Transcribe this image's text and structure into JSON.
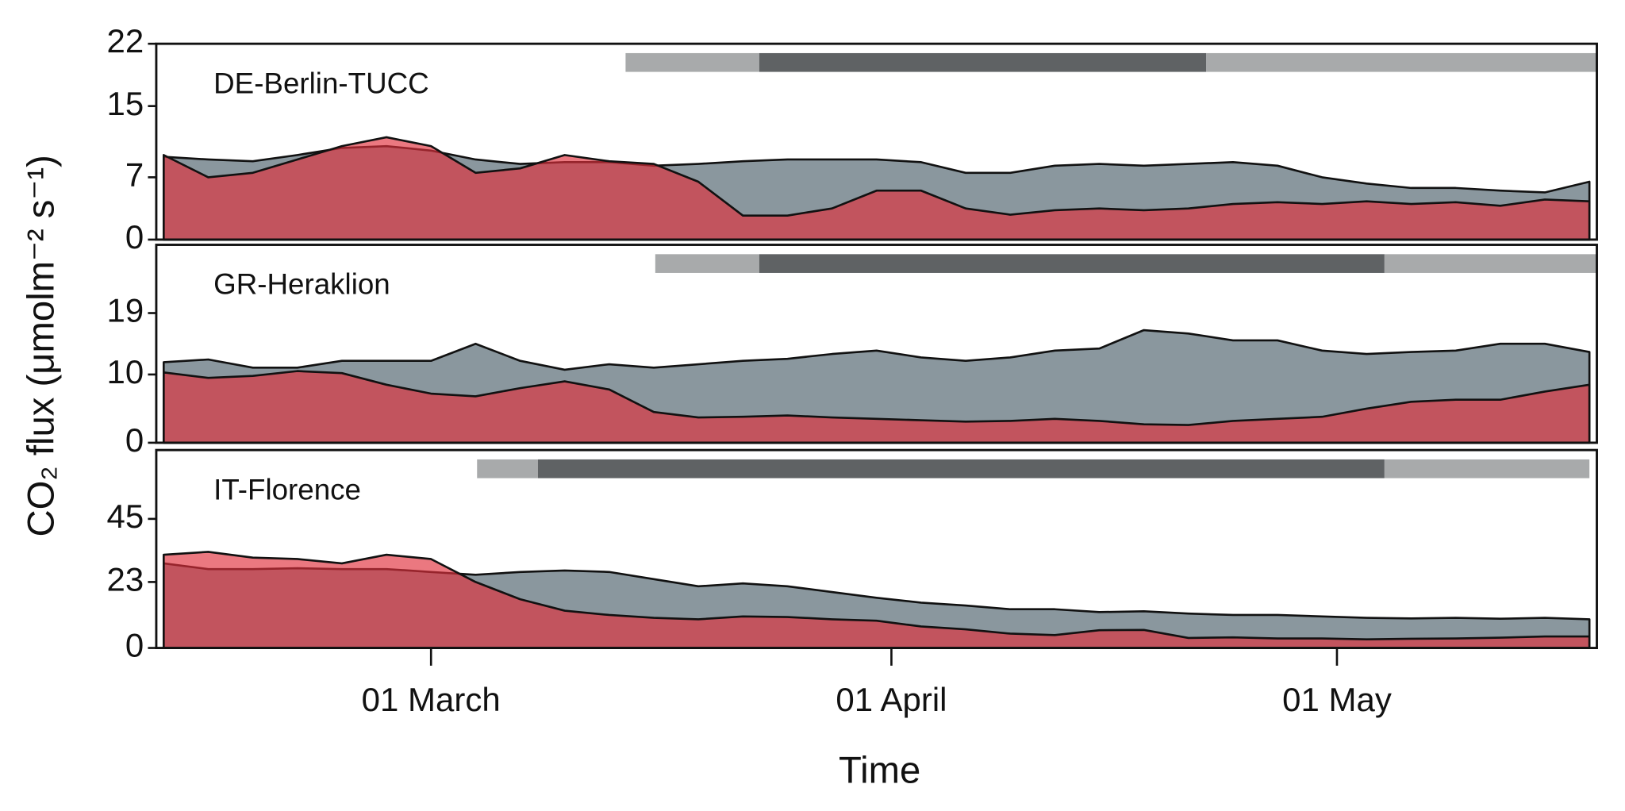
{
  "chart_data": [
    {
      "type": "area",
      "label": "DE-Berlin-TUCC",
      "x": [
        43,
        46,
        49,
        52,
        55,
        58,
        61,
        64,
        67,
        70,
        73,
        76,
        79,
        82,
        85,
        88,
        91,
        94,
        97,
        100,
        103,
        106,
        109,
        112,
        115,
        118,
        121,
        124,
        127,
        130,
        133,
        136,
        139
      ],
      "series": [
        {
          "color": "#8a979e",
          "values": [
            9.3,
            9,
            8.8,
            9.5,
            10.3,
            10.5,
            10,
            9,
            8.5,
            8.7,
            8.7,
            8.3,
            8.5,
            8.8,
            9,
            9,
            9,
            8.7,
            7.5,
            7.5,
            8.3,
            8.5,
            8.3,
            8.5,
            8.7,
            8.3,
            7,
            6.3,
            5.8,
            5.8,
            5.5,
            5.3,
            6.5
          ]
        },
        {
          "color": "#e0303c",
          "values": [
            9.5,
            7,
            7.5,
            9,
            10.5,
            11.5,
            10.5,
            7.5,
            8,
            9.5,
            8.8,
            8.5,
            6.5,
            2.7,
            2.7,
            3.5,
            5.5,
            5.5,
            3.5,
            2.8,
            3.3,
            3.5,
            3.3,
            3.5,
            4,
            4.2,
            4,
            4.3,
            4,
            4.2,
            3.8,
            4.5,
            4.3
          ]
        }
      ],
      "periods": [
        {
          "start": 74.1,
          "end": 83.1,
          "color": "#a8aaab"
        },
        {
          "start": 83.1,
          "end": 113.2,
          "color": "#5f6264"
        },
        {
          "start": 113.2,
          "end": 139.5,
          "color": "#a8aaab"
        }
      ],
      "xlim": [
        42.5,
        139.5
      ],
      "ylim": [
        0,
        22
      ],
      "yticks": [
        0,
        7,
        15,
        22
      ]
    },
    {
      "type": "area",
      "label": "GR-Heraklion",
      "ylabel": "CO₂ flux (μmolm⁻² s⁻¹)",
      "x": [
        43,
        46,
        49,
        52,
        55,
        58,
        61,
        64,
        67,
        70,
        73,
        76,
        79,
        82,
        85,
        88,
        91,
        94,
        97,
        100,
        103,
        106,
        109,
        112,
        115,
        118,
        121,
        124,
        127,
        130,
        133,
        136,
        139
      ],
      "series": [
        {
          "color": "#8a979e",
          "values": [
            11.8,
            12.2,
            11,
            11,
            12,
            12,
            12,
            14.5,
            12,
            10.7,
            11.5,
            11,
            11.5,
            12,
            12.3,
            13,
            13.5,
            12.5,
            12,
            12.5,
            13.5,
            13.8,
            16.5,
            16,
            15,
            15,
            13.5,
            13,
            13.3,
            13.5,
            14.5,
            14.5,
            13.3
          ]
        },
        {
          "color": "#e0303c",
          "values": [
            10.3,
            9.5,
            9.8,
            10.5,
            10.2,
            8.5,
            7.2,
            6.8,
            8,
            9,
            7.8,
            4.5,
            3.7,
            3.8,
            4,
            3.7,
            3.5,
            3.3,
            3.1,
            3.2,
            3.5,
            3.2,
            2.7,
            2.6,
            3.2,
            3.5,
            3.8,
            5,
            6,
            6.3,
            6.3,
            7.5,
            8.5
          ]
        }
      ],
      "periods": [
        {
          "start": 76.1,
          "end": 83.1,
          "color": "#a8aaab"
        },
        {
          "start": 83.1,
          "end": 125.2,
          "color": "#5f6264"
        },
        {
          "start": 125.2,
          "end": 139.5,
          "color": "#a8aaab"
        }
      ],
      "xlim": [
        42.5,
        139.5
      ],
      "ylim": [
        0,
        29
      ],
      "yticks": [
        0,
        10,
        19
      ]
    },
    {
      "type": "area",
      "label": "IT-Florence",
      "xlabel": "Time",
      "x": [
        43,
        46,
        49,
        52,
        55,
        58,
        61,
        64,
        67,
        70,
        73,
        76,
        79,
        82,
        85,
        88,
        91,
        94,
        97,
        100,
        103,
        106,
        109,
        112,
        115,
        118,
        121,
        124,
        127,
        130,
        133,
        136,
        139
      ],
      "series": [
        {
          "color": "#8a979e",
          "values": [
            29.5,
            27.5,
            27.5,
            27.8,
            27.5,
            27.5,
            26.5,
            25.5,
            26.5,
            27,
            26.5,
            24,
            21.5,
            22.5,
            21.5,
            19.5,
            17.5,
            15.8,
            14.8,
            13.5,
            13.5,
            12.5,
            12.8,
            12,
            11.5,
            11.5,
            11,
            10.5,
            10.3,
            10.5,
            10.2,
            10.5,
            10
          ]
        },
        {
          "color": "#e0303c",
          "values": [
            32.5,
            33.5,
            31.5,
            31,
            29.5,
            32.5,
            31,
            23,
            17,
            13,
            11.5,
            10.5,
            10,
            11,
            10.8,
            10,
            9.5,
            7.5,
            6.5,
            5,
            4.5,
            6.2,
            6.3,
            3.5,
            3.7,
            3.3,
            3.3,
            3,
            3.2,
            3.3,
            3.6,
            4,
            4
          ]
        }
      ],
      "periods": [
        {
          "start": 64.1,
          "end": 68.2,
          "color": "#a8aaab"
        },
        {
          "start": 68.2,
          "end": 125.2,
          "color": "#5f6264"
        },
        {
          "start": 125.2,
          "end": 139.0,
          "color": "#a8aaab"
        }
      ],
      "xlim": [
        42.5,
        139.5
      ],
      "ylim": [
        0,
        69
      ],
      "yticks": [
        0,
        23,
        45
      ],
      "xticks": [
        {
          "value": 61,
          "label": "01 March"
        },
        {
          "value": 92,
          "label": "01 April"
        },
        {
          "value": 122,
          "label": "01 May"
        }
      ]
    }
  ]
}
